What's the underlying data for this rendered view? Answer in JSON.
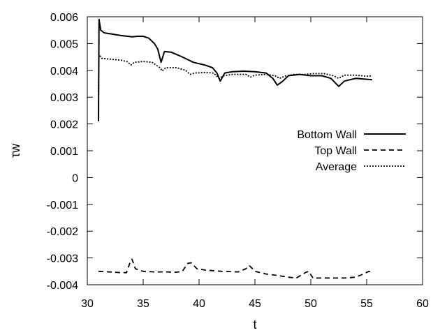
{
  "chart_data": {
    "type": "line",
    "title": "",
    "xlabel": "t",
    "ylabel": "τw",
    "xlim": [
      30,
      60
    ],
    "ylim": [
      -0.004,
      0.006
    ],
    "xticks": [
      "30",
      "35",
      "40",
      "45",
      "50",
      "55",
      "60"
    ],
    "yticks": [
      "-0.004",
      "-0.003",
      "-0.002",
      "-0.001",
      "0",
      "0.001",
      "0.002",
      "0.003",
      "0.004",
      "0.005",
      "0.006"
    ],
    "grid": false,
    "legend_position": "center-right",
    "series": [
      {
        "name": "Bottom Wall",
        "style": "solid",
        "points": [
          [
            31.0,
            0.0021
          ],
          [
            31.05,
            0.0059
          ],
          [
            31.2,
            0.0055
          ],
          [
            31.5,
            0.0054
          ],
          [
            32.0,
            0.00537
          ],
          [
            33.0,
            0.0053
          ],
          [
            34.0,
            0.00525
          ],
          [
            34.5,
            0.00527
          ],
          [
            35.0,
            0.00527
          ],
          [
            35.5,
            0.0052
          ],
          [
            36.0,
            0.005
          ],
          [
            36.3,
            0.0048
          ],
          [
            36.6,
            0.0043
          ],
          [
            36.9,
            0.0047
          ],
          [
            37.5,
            0.00468
          ],
          [
            38.5,
            0.0045
          ],
          [
            39.5,
            0.0043
          ],
          [
            40.5,
            0.0042
          ],
          [
            41.2,
            0.0041
          ],
          [
            41.6,
            0.0039
          ],
          [
            41.9,
            0.0036
          ],
          [
            42.3,
            0.0039
          ],
          [
            43.0,
            0.00395
          ],
          [
            44.0,
            0.00397
          ],
          [
            45.0,
            0.00395
          ],
          [
            46.0,
            0.0039
          ],
          [
            46.6,
            0.0037
          ],
          [
            47.0,
            0.00345
          ],
          [
            47.5,
            0.0036
          ],
          [
            48.0,
            0.0038
          ],
          [
            49.0,
            0.00385
          ],
          [
            50.0,
            0.0038
          ],
          [
            51.0,
            0.0038
          ],
          [
            51.8,
            0.0037
          ],
          [
            52.5,
            0.0034
          ],
          [
            53.0,
            0.0036
          ],
          [
            54.0,
            0.0037
          ],
          [
            55.5,
            0.00365
          ]
        ]
      },
      {
        "name": "Top Wall",
        "style": "dashed",
        "points": [
          [
            31.0,
            -0.0035
          ],
          [
            32.0,
            -0.00352
          ],
          [
            33.0,
            -0.00355
          ],
          [
            33.5,
            -0.00355
          ],
          [
            33.8,
            -0.0032
          ],
          [
            34.0,
            -0.00305
          ],
          [
            34.3,
            -0.0034
          ],
          [
            35.0,
            -0.0035
          ],
          [
            36.0,
            -0.00352
          ],
          [
            37.0,
            -0.00352
          ],
          [
            38.0,
            -0.00353
          ],
          [
            38.5,
            -0.0035
          ],
          [
            39.0,
            -0.0032
          ],
          [
            39.3,
            -0.00318
          ],
          [
            39.8,
            -0.0034
          ],
          [
            40.5,
            -0.00345
          ],
          [
            42.0,
            -0.0035
          ],
          [
            43.5,
            -0.00352
          ],
          [
            44.2,
            -0.0034
          ],
          [
            44.5,
            -0.00328
          ],
          [
            45.0,
            -0.0035
          ],
          [
            46.0,
            -0.0036
          ],
          [
            47.0,
            -0.00365
          ],
          [
            48.0,
            -0.00372
          ],
          [
            48.7,
            -0.00375
          ],
          [
            49.5,
            -0.00355
          ],
          [
            49.8,
            -0.0035
          ],
          [
            50.2,
            -0.00375
          ],
          [
            51.0,
            -0.00375
          ],
          [
            52.0,
            -0.00375
          ],
          [
            53.0,
            -0.00375
          ],
          [
            54.0,
            -0.00372
          ],
          [
            54.7,
            -0.0036
          ],
          [
            55.2,
            -0.0035
          ],
          [
            55.5,
            -0.00355
          ]
        ]
      },
      {
        "name": "Average",
        "style": "dotted",
        "points": [
          [
            31.0,
            0.0032
          ],
          [
            31.05,
            0.0046
          ],
          [
            31.3,
            0.00445
          ],
          [
            32.0,
            0.00442
          ],
          [
            33.0,
            0.00438
          ],
          [
            33.6,
            0.00432
          ],
          [
            33.9,
            0.0042
          ],
          [
            34.2,
            0.0043
          ],
          [
            35.0,
            0.00433
          ],
          [
            35.8,
            0.0043
          ],
          [
            36.5,
            0.0041
          ],
          [
            36.7,
            0.00398
          ],
          [
            37.0,
            0.0041
          ],
          [
            38.0,
            0.0041
          ],
          [
            38.8,
            0.004
          ],
          [
            39.2,
            0.00385
          ],
          [
            39.6,
            0.0039
          ],
          [
            40.5,
            0.00392
          ],
          [
            41.3,
            0.0039
          ],
          [
            41.8,
            0.0037
          ],
          [
            42.2,
            0.0038
          ],
          [
            43.0,
            0.00385
          ],
          [
            44.2,
            0.00385
          ],
          [
            44.6,
            0.00375
          ],
          [
            45.0,
            0.00382
          ],
          [
            46.0,
            0.00385
          ],
          [
            46.8,
            0.0038
          ],
          [
            47.2,
            0.0037
          ],
          [
            47.8,
            0.0038
          ],
          [
            48.5,
            0.00385
          ],
          [
            49.5,
            0.00385
          ],
          [
            50.2,
            0.00388
          ],
          [
            51.2,
            0.00388
          ],
          [
            52.0,
            0.0038
          ],
          [
            52.5,
            0.0037
          ],
          [
            53.0,
            0.00382
          ],
          [
            54.0,
            0.00382
          ],
          [
            55.0,
            0.00378
          ],
          [
            55.5,
            0.0038
          ]
        ]
      }
    ]
  }
}
